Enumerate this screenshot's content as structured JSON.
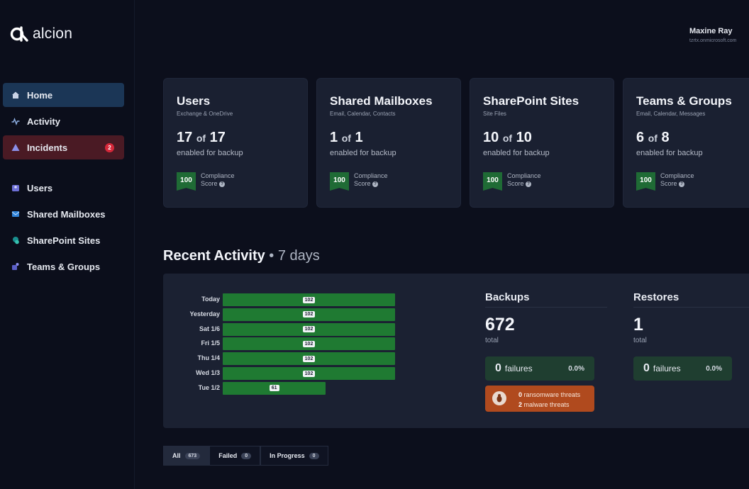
{
  "brand": {
    "name": "alcion"
  },
  "user": {
    "name": "Maxine Ray",
    "tenant": "tzrtx.onmicrosoft.com"
  },
  "sidebar": {
    "items": [
      {
        "label": "Home",
        "icon": "home-icon",
        "state": "active"
      },
      {
        "label": "Activity",
        "icon": "activity-icon",
        "state": "normal"
      },
      {
        "label": "Incidents",
        "icon": "warning-icon",
        "state": "alert",
        "badge": "2"
      },
      {
        "label": "Users",
        "icon": "users-icon",
        "state": "normal"
      },
      {
        "label": "Shared Mailboxes",
        "icon": "mailbox-icon",
        "state": "normal"
      },
      {
        "label": "SharePoint Sites",
        "icon": "sharepoint-icon",
        "state": "normal"
      },
      {
        "label": "Teams & Groups",
        "icon": "teams-icon",
        "state": "normal"
      }
    ]
  },
  "cards": [
    {
      "title": "Users",
      "subtitle": "Exchange & OneDrive",
      "count": "17",
      "of": "of",
      "total": "17",
      "enabled": "enabled for backup",
      "score": "100",
      "score_line1": "Compliance",
      "score_line2": "Score"
    },
    {
      "title": "Shared Mailboxes",
      "subtitle": "Email, Calendar, Contacts",
      "count": "1",
      "of": "of",
      "total": "1",
      "enabled": "enabled for backup",
      "score": "100",
      "score_line1": "Compliance",
      "score_line2": "Score"
    },
    {
      "title": "SharePoint Sites",
      "subtitle": "Site Files",
      "count": "10",
      "of": "of",
      "total": "10",
      "enabled": "enabled for backup",
      "score": "100",
      "score_line1": "Compliance",
      "score_line2": "Score"
    },
    {
      "title": "Teams & Groups",
      "subtitle": "Email, Calendar, Messages",
      "count": "6",
      "of": "of",
      "total": "8",
      "enabled": "enabled for backup",
      "score": "100",
      "score_line1": "Compliance",
      "score_line2": "Score"
    }
  ],
  "recent_activity": {
    "title": "Recent Activity",
    "separator": " • ",
    "period": "7 days",
    "days": [
      {
        "label": "Today",
        "value": 102
      },
      {
        "label": "Yesterday",
        "value": 102
      },
      {
        "label": "Sat 1/6",
        "value": 102
      },
      {
        "label": "Fri 1/5",
        "value": 102
      },
      {
        "label": "Thu 1/4",
        "value": 102
      },
      {
        "label": "Wed 1/3",
        "value": 102
      },
      {
        "label": "Tue 1/2",
        "value": 61
      }
    ],
    "max_value": 102,
    "backups": {
      "title": "Backups",
      "count": "672",
      "total_label": "total",
      "failures": "0",
      "failures_label": "failures",
      "failure_pct": "0.0%"
    },
    "restores": {
      "title": "Restores",
      "count": "1",
      "total_label": "total",
      "failures": "0",
      "failures_label": "failures",
      "failure_pct": "0.0%"
    },
    "threats": {
      "ransomware_count": "0",
      "ransomware_label": "ransomware threats",
      "malware_count": "2",
      "malware_label": "malware threats"
    }
  },
  "tabs": [
    {
      "label": "All",
      "count": "673",
      "active": true
    },
    {
      "label": "Failed",
      "count": "0",
      "active": false
    },
    {
      "label": "In Progress",
      "count": "0",
      "active": false
    }
  ],
  "colors": {
    "accent_blue": "#1b3656",
    "alert_red": "#4a1a24",
    "bar_green": "#1f7a32",
    "threat_orange": "#b04a1e",
    "failure_green": "#1f3e30"
  }
}
